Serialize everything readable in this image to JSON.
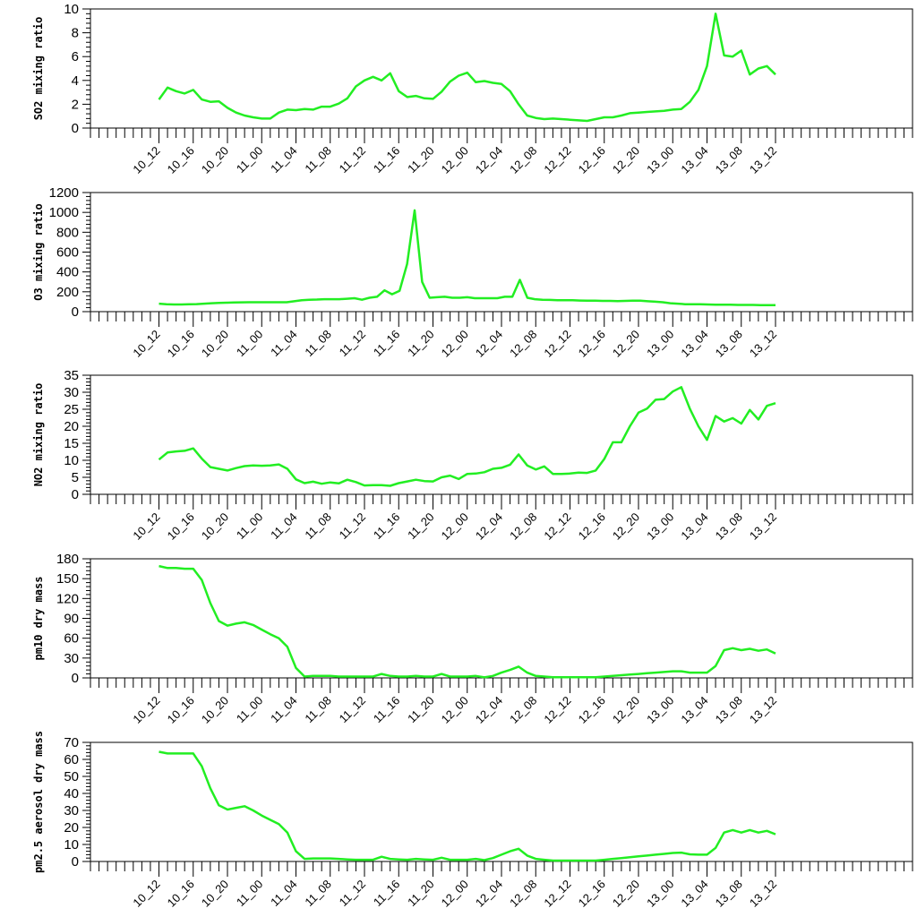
{
  "colors": {
    "line": "#22ee22",
    "axis": "#000000"
  },
  "chart_data": [
    {
      "type": "line",
      "ylabel": "SO2 mixing ratio",
      "ylim": [
        0,
        10
      ],
      "yticks": [
        0,
        2,
        4,
        6,
        8,
        10
      ],
      "x_labels": [
        "10_12",
        "10_16",
        "10_20",
        "11_00",
        "11_04",
        "11_08",
        "11_12",
        "11_16",
        "11_20",
        "12_00",
        "12_04",
        "12_08",
        "12_12",
        "12_16",
        "12_20",
        "13_00",
        "13_04",
        "13_08",
        "13_12"
      ],
      "values": [
        2.4,
        3.4,
        3.1,
        2.9,
        3.2,
        2.4,
        2.2,
        2.25,
        1.7,
        1.3,
        1.05,
        0.9,
        0.8,
        0.8,
        1.3,
        1.55,
        1.5,
        1.6,
        1.55,
        1.8,
        1.8,
        2.05,
        2.5,
        3.5,
        4.0,
        4.3,
        4.0,
        4.6,
        3.1,
        2.6,
        2.7,
        2.5,
        2.45,
        3.05,
        3.9,
        4.4,
        4.65,
        3.85,
        3.95,
        3.8,
        3.7,
        3.1,
        2.0,
        1.05,
        0.85,
        0.75,
        0.8,
        0.75,
        0.7,
        0.65,
        0.6,
        0.75,
        0.9,
        0.9,
        1.05,
        1.25,
        1.3,
        1.35,
        1.4,
        1.45,
        1.55,
        1.6,
        2.2,
        3.2,
        5.2,
        9.6,
        6.1,
        6.0,
        6.5,
        4.5,
        5.0,
        5.2,
        4.5
      ]
    },
    {
      "type": "line",
      "ylabel": "O3 mixing ratio",
      "ylim": [
        0,
        1200
      ],
      "yticks": [
        0,
        200,
        400,
        600,
        800,
        1000,
        1200
      ],
      "x_labels": [
        "10_12",
        "10_16",
        "10_20",
        "11_00",
        "11_04",
        "11_08",
        "11_12",
        "11_16",
        "11_20",
        "12_00",
        "12_04",
        "12_08",
        "12_12",
        "12_16",
        "12_20",
        "13_00",
        "13_04",
        "13_08",
        "13_12"
      ],
      "values": [
        80,
        75,
        72,
        72,
        74,
        76,
        80,
        85,
        88,
        90,
        92,
        94,
        95,
        95,
        95,
        95,
        95,
        95,
        105,
        115,
        120,
        122,
        125,
        125,
        125,
        130,
        135,
        120,
        140,
        150,
        215,
        175,
        210,
        480,
        1020,
        300,
        140,
        145,
        150,
        140,
        140,
        145,
        135,
        135,
        135,
        135,
        150,
        150,
        320,
        140,
        125,
        120,
        118,
        115,
        115,
        115,
        112,
        110,
        110,
        108,
        108,
        106,
        108,
        110,
        110,
        105,
        100,
        95,
        85,
        80,
        75,
        75,
        75,
        72,
        70,
        70,
        70,
        68,
        68,
        68,
        66,
        65,
        65
      ]
    },
    {
      "type": "line",
      "ylabel": "NO2 mixing ratio",
      "ylim": [
        0,
        35
      ],
      "yticks": [
        0,
        5,
        10,
        15,
        20,
        25,
        30,
        35
      ],
      "x_labels": [
        "10_12",
        "10_16",
        "10_20",
        "11_00",
        "11_04",
        "11_08",
        "11_12",
        "11_16",
        "11_20",
        "12_00",
        "12_04",
        "12_08",
        "12_12",
        "12_16",
        "12_20",
        "13_00",
        "13_04",
        "13_08",
        "13_12"
      ],
      "values": [
        10.2,
        12.3,
        12.6,
        12.8,
        13.5,
        10.5,
        8.0,
        7.5,
        7.0,
        7.7,
        8.3,
        8.5,
        8.4,
        8.5,
        8.8,
        7.5,
        4.4,
        3.3,
        3.7,
        3.1,
        3.5,
        3.2,
        4.3,
        3.6,
        2.6,
        2.7,
        2.7,
        2.5,
        3.3,
        3.8,
        4.3,
        3.9,
        3.8,
        5.0,
        5.5,
        4.5,
        6.0,
        6.1,
        6.5,
        7.5,
        7.8,
        8.7,
        11.7,
        8.5,
        7.3,
        8.2,
        6.0,
        6.0,
        6.1,
        6.4,
        6.3,
        7.0,
        10.4,
        15.3,
        15.3,
        20.0,
        24.0,
        25.2,
        27.8,
        28.0,
        30.2,
        31.5,
        25.1,
        20.0,
        16.0,
        23.0,
        21.4,
        22.4,
        20.8,
        24.8,
        22.0,
        26.0,
        26.8
      ]
    },
    {
      "type": "line",
      "ylabel": "pm10 dry mass",
      "ylim": [
        0,
        180
      ],
      "yticks": [
        0,
        30,
        60,
        90,
        120,
        150,
        180
      ],
      "x_labels": [
        "10_12",
        "10_16",
        "10_20",
        "11_00",
        "11_04",
        "11_08",
        "11_12",
        "11_16",
        "11_20",
        "12_00",
        "12_04",
        "12_08",
        "12_12",
        "12_16",
        "12_20",
        "13_00",
        "13_04",
        "13_08",
        "13_12"
      ],
      "values": [
        169,
        166,
        166,
        165,
        165,
        148,
        113,
        86,
        79,
        82,
        84,
        80,
        73,
        66,
        60,
        47,
        15,
        2,
        3,
        3,
        3,
        2,
        2,
        2,
        2,
        2,
        6,
        3,
        2,
        2,
        3,
        2,
        2,
        6,
        2,
        2,
        2,
        3,
        1,
        3,
        8,
        12,
        17,
        8,
        3,
        2,
        1,
        1,
        1,
        1,
        1,
        1,
        2,
        3,
        4,
        5,
        6,
        7,
        8,
        9,
        10,
        10,
        8,
        8,
        8,
        18,
        42,
        45,
        42,
        44,
        41,
        43,
        37
      ]
    },
    {
      "type": "line",
      "ylabel": "pm2.5 aerosol dry mass",
      "ylim": [
        0,
        70
      ],
      "yticks": [
        0,
        10,
        20,
        30,
        40,
        50,
        60,
        70
      ],
      "x_labels": [
        "10_12",
        "10_16",
        "10_20",
        "11_00",
        "11_04",
        "11_08",
        "11_12",
        "11_16",
        "11_20",
        "12_00",
        "12_04",
        "12_08",
        "12_12",
        "12_16",
        "12_20",
        "13_00",
        "13_04",
        "13_08",
        "13_12"
      ],
      "values": [
        64.5,
        63.5,
        63.5,
        63.5,
        63.5,
        56,
        43,
        33,
        30.5,
        31.5,
        32.5,
        30,
        27,
        24.5,
        22,
        17,
        6,
        1.5,
        1.8,
        1.8,
        1.8,
        1.5,
        1.2,
        1.0,
        1.0,
        1.0,
        2.8,
        1.5,
        1.2,
        1.0,
        1.5,
        1.2,
        1.0,
        2.2,
        1.0,
        1.0,
        1.0,
        1.5,
        0.8,
        2,
        4,
        6,
        7.5,
        3.5,
        1.5,
        1,
        0.5,
        0.5,
        0.5,
        0.5,
        0.5,
        0.5,
        1,
        1.5,
        2,
        2.5,
        3,
        3.5,
        4,
        4.5,
        5,
        5.2,
        4.2,
        4.0,
        4.0,
        8,
        17,
        18.5,
        17,
        18.5,
        17,
        18,
        16
      ]
    }
  ]
}
